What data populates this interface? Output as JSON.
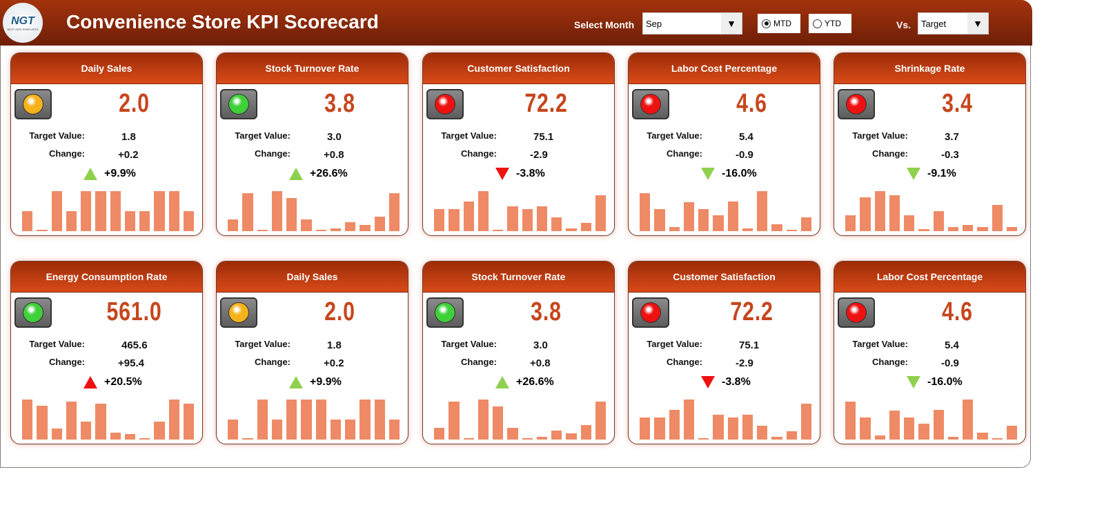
{
  "header": {
    "title": "Convenience Store KPI Scorecard",
    "logo_text": "NGT",
    "logo_sub": "NEXT GEN TEMPLATES",
    "select_month_label": "Select Month",
    "month": "Sep",
    "mtd_label": "MTD",
    "ytd_label": "YTD",
    "selected_period": "MTD",
    "vs_label": "Vs.",
    "vs_value": "Target"
  },
  "labels": {
    "target": "Target Value:",
    "change": "Change:"
  },
  "colors": {
    "green_light": "#3fd13a",
    "yellow_light": "#f5b21a",
    "red_light": "#ee1111",
    "up_good": "#8fd14f",
    "down_bad": "#ee1111",
    "bar": "#ee8a66"
  },
  "cards": [
    {
      "title": "Daily Sales",
      "value": "2.0",
      "target": "1.8",
      "change": "+0.2",
      "pct": "+9.9%",
      "light": "yellow",
      "arrow": "up",
      "arrow_color": "green",
      "bars": [
        0.5,
        0.03,
        1,
        0.5,
        1,
        1,
        1,
        0.5,
        0.5,
        1,
        1,
        0.5
      ]
    },
    {
      "title": "Stock Turnover Rate",
      "value": "3.8",
      "target": "3.0",
      "change": "+0.8",
      "pct": "+26.6%",
      "light": "green",
      "arrow": "up",
      "arrow_color": "green",
      "bars": [
        0.3,
        0.95,
        0.03,
        1,
        0.82,
        0.3,
        0.03,
        0.07,
        0.23,
        0.16,
        0.36,
        0.95
      ]
    },
    {
      "title": "Customer Satisfaction",
      "value": "72.2",
      "target": "75.1",
      "change": "-2.9",
      "pct": "-3.8%",
      "light": "red",
      "arrow": "down",
      "arrow_color": "red",
      "bars": [
        0.55,
        0.55,
        0.75,
        1,
        0.03,
        0.62,
        0.55,
        0.62,
        0.35,
        0.07,
        0.2,
        0.9
      ]
    },
    {
      "title": "Labor Cost Percentage",
      "value": "4.6",
      "target": "5.4",
      "change": "-0.9",
      "pct": "-16.0%",
      "light": "red",
      "arrow": "down",
      "arrow_color": "green",
      "bars": [
        0.95,
        0.55,
        0.1,
        0.73,
        0.55,
        0.4,
        0.75,
        0.07,
        1,
        0.18,
        0.02,
        0.35
      ]
    },
    {
      "title": "Shrinkage Rate",
      "value": "3.4",
      "target": "3.7",
      "change": "-0.3",
      "pct": "-9.1%",
      "light": "red",
      "arrow": "down",
      "arrow_color": "green",
      "bars": [
        0.4,
        0.85,
        1,
        0.9,
        0.4,
        0.05,
        0.5,
        0.1,
        0.15,
        0.1,
        0.65,
        0.1
      ]
    },
    {
      "title": "Energy Consumption Rate",
      "value": "561.0",
      "target": "465.6",
      "change": "+95.4",
      "pct": "+20.5%",
      "light": "green",
      "arrow": "up",
      "arrow_color": "red",
      "bars": [
        1,
        0.85,
        0.28,
        0.95,
        0.45,
        0.9,
        0.18,
        0.14,
        0.03,
        0.45,
        1,
        0.9
      ]
    },
    {
      "title": "Daily Sales",
      "value": "2.0",
      "target": "1.8",
      "change": "+0.2",
      "pct": "+9.9%",
      "light": "yellow",
      "arrow": "up",
      "arrow_color": "green",
      "bars": [
        0.5,
        0.03,
        1,
        0.5,
        1,
        1,
        1,
        0.5,
        0.5,
        1,
        1,
        0.5
      ]
    },
    {
      "title": "Stock Turnover Rate",
      "value": "3.8",
      "target": "3.0",
      "change": "+0.8",
      "pct": "+26.6%",
      "light": "green",
      "arrow": "up",
      "arrow_color": "green",
      "bars": [
        0.3,
        0.95,
        0.03,
        1,
        0.82,
        0.3,
        0.03,
        0.07,
        0.23,
        0.16,
        0.36,
        0.95
      ]
    },
    {
      "title": "Customer Satisfaction",
      "value": "72.2",
      "target": "75.1",
      "change": "-2.9",
      "pct": "-3.8%",
      "light": "red",
      "arrow": "down",
      "arrow_color": "red",
      "bars": [
        0.55,
        0.55,
        0.75,
        1,
        0.03,
        0.62,
        0.55,
        0.62,
        0.35,
        0.07,
        0.2,
        0.9
      ]
    },
    {
      "title": "Labor Cost Percentage",
      "value": "4.6",
      "target": "5.4",
      "change": "-0.9",
      "pct": "-16.0%",
      "light": "red",
      "arrow": "down",
      "arrow_color": "green",
      "bars": [
        0.95,
        0.55,
        0.1,
        0.73,
        0.55,
        0.4,
        0.75,
        0.07,
        1,
        0.18,
        0.02,
        0.35
      ]
    }
  ]
}
